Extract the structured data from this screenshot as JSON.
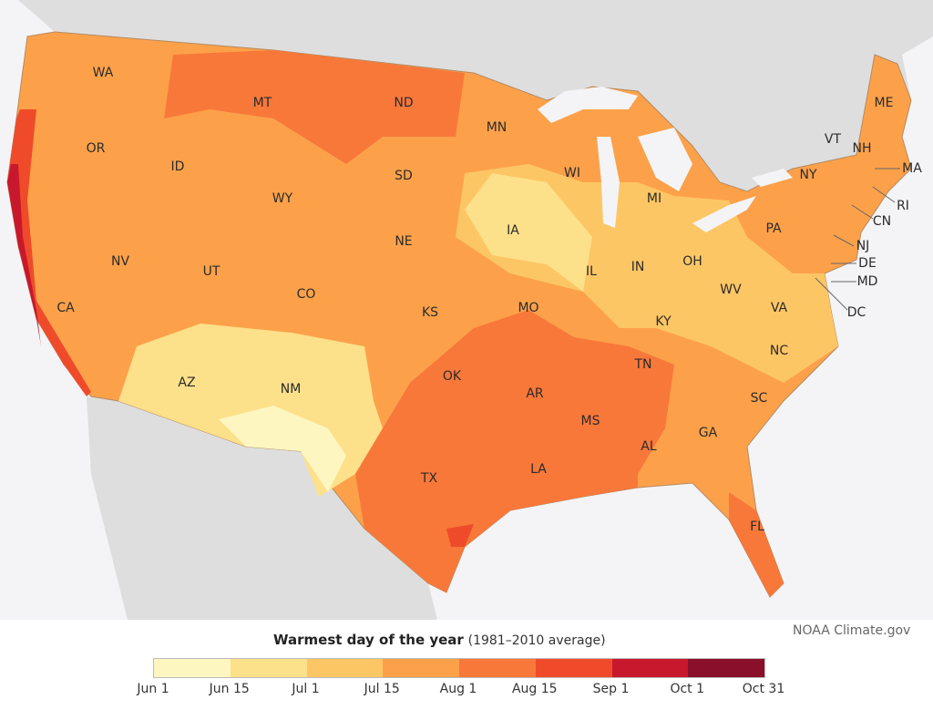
{
  "title": {
    "main": "Warmest day of the year",
    "sub": "(1981–2010 average)"
  },
  "credit": "NOAA Climate.gov",
  "legend": {
    "ticks": [
      "Jun 1",
      "Jun 15",
      "Jul 1",
      "Jul 15",
      "Aug 1",
      "Aug 15",
      "Sep 1",
      "Oct 1",
      "Oct 31"
    ],
    "colors": [
      "#fdf6c0",
      "#fde08a",
      "#fdc665",
      "#fca14a",
      "#f8783a",
      "#ef4b2a",
      "#c8182e",
      "#8a0f2a"
    ]
  },
  "colors": {
    "land_other": "#dedede",
    "water": "#f4f4f6",
    "borders": "#9a7a5a"
  },
  "states": [
    "WA",
    "OR",
    "ID",
    "MT",
    "ND",
    "MN",
    "WY",
    "SD",
    "WI",
    "MI",
    "NY",
    "VT",
    "NH",
    "ME",
    "MA",
    "RI",
    "CN",
    "PA",
    "NJ",
    "DE",
    "MD",
    "DC",
    "NE",
    "IA",
    "IL",
    "IN",
    "OH",
    "NV",
    "UT",
    "CO",
    "CA",
    "KS",
    "MO",
    "WV",
    "VA",
    "KY",
    "NC",
    "TN",
    "OK",
    "AR",
    "SC",
    "AZ",
    "NM",
    "MS",
    "AL",
    "GA",
    "TX",
    "LA",
    "FL"
  ]
}
